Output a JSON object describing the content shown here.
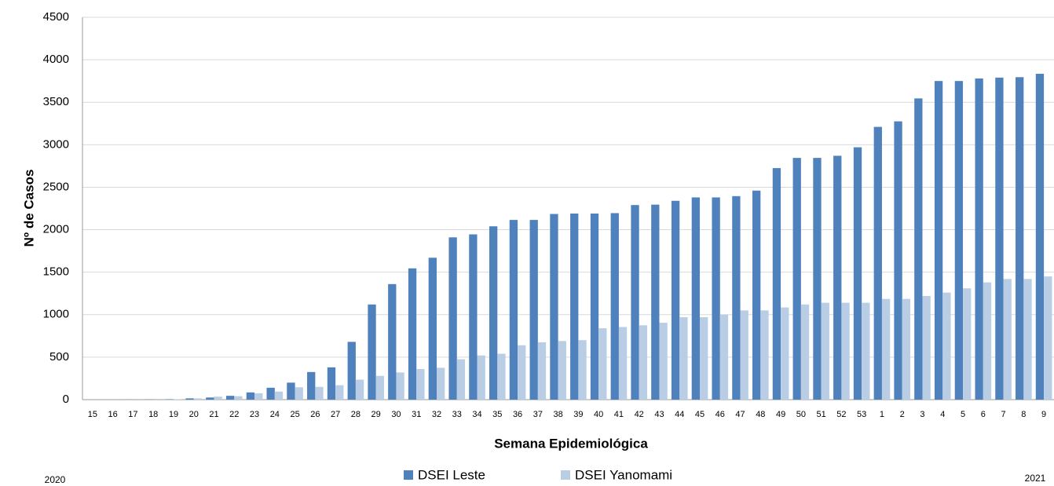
{
  "chart_data": {
    "type": "bar",
    "y_label": "Nº de Casos",
    "x_label": "Semana Epidemiológica",
    "annotations": [
      "2020",
      "2021"
    ],
    "categories": [
      "15",
      "16",
      "17",
      "18",
      "19",
      "20",
      "21",
      "22",
      "23",
      "24",
      "25",
      "26",
      "27",
      "28",
      "29",
      "30",
      "31",
      "32",
      "33",
      "34",
      "35",
      "36",
      "37",
      "38",
      "39",
      "40",
      "41",
      "42",
      "43",
      "44",
      "45",
      "46",
      "47",
      "48",
      "49",
      "50",
      "51",
      "52",
      "53",
      "1",
      "2",
      "3",
      "4",
      "5",
      "6",
      "7",
      "8",
      "9"
    ],
    "series": [
      {
        "name": "DSEI Leste",
        "color": "#4f81bd",
        "values": [
          0,
          0,
          2,
          3,
          5,
          15,
          25,
          45,
          85,
          140,
          200,
          325,
          380,
          680,
          1120,
          1360,
          1545,
          1670,
          1910,
          1945,
          2040,
          2115,
          2115,
          2185,
          2190,
          2190,
          2195,
          2290,
          2295,
          2340,
          2380,
          2380,
          2395,
          2460,
          2725,
          2845,
          2845,
          2870,
          2970,
          3210,
          3275,
          3545,
          3750,
          3750,
          3780,
          3790,
          3795,
          3835
        ]
      },
      {
        "name": "DSEI Yanomami",
        "color": "#b9cde5",
        "values": [
          0,
          0,
          0,
          0,
          5,
          15,
          35,
          40,
          75,
          95,
          145,
          150,
          170,
          235,
          280,
          320,
          360,
          375,
          475,
          520,
          540,
          640,
          675,
          690,
          700,
          840,
          855,
          875,
          905,
          970,
          970,
          1000,
          1050,
          1050,
          1085,
          1120,
          1140,
          1140,
          1140,
          1185,
          1185,
          1220,
          1260,
          1310,
          1380,
          1420,
          1420,
          1450
        ]
      }
    ],
    "ylim": [
      0,
      4500
    ],
    "yticks": [
      0,
      500,
      1000,
      1500,
      2000,
      2500,
      3000,
      3500,
      4000,
      4500
    ],
    "grid": true,
    "legend": "bottom"
  }
}
